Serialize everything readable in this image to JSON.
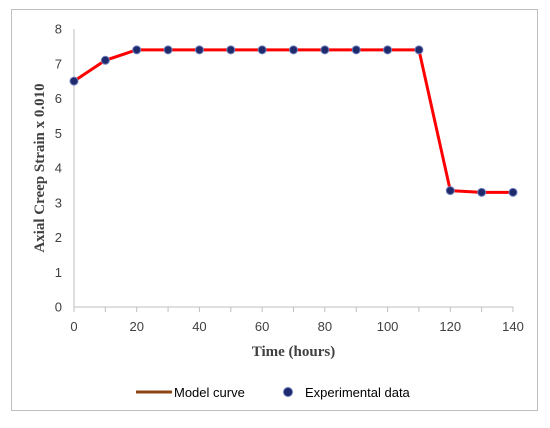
{
  "chart_data": {
    "type": "line",
    "xlabel": "Time (hours)",
    "ylabel": "Axial Creep Strain x 0.010",
    "xlim": [
      0,
      140
    ],
    "ylim": [
      0,
      8
    ],
    "xticks": [
      0,
      20,
      40,
      60,
      80,
      100,
      120,
      140
    ],
    "yticks": [
      0,
      1,
      2,
      3,
      4,
      5,
      6,
      7,
      8
    ],
    "grid": false,
    "legend_position": "bottom",
    "series": [
      {
        "name": "Model curve",
        "kind": "line",
        "color": "#ff0000",
        "legend_color": "#8b4513",
        "x": [
          0,
          10,
          20,
          30,
          40,
          50,
          60,
          70,
          80,
          90,
          100,
          110,
          120,
          130,
          140
        ],
        "y": [
          6.5,
          7.1,
          7.4,
          7.4,
          7.4,
          7.4,
          7.4,
          7.4,
          7.4,
          7.4,
          7.4,
          7.4,
          3.35,
          3.3,
          3.3
        ]
      },
      {
        "name": "Experimental data",
        "kind": "scatter",
        "color": "#1f2a6b",
        "x": [
          0,
          10,
          20,
          30,
          40,
          50,
          60,
          70,
          80,
          90,
          100,
          110,
          120,
          130,
          140
        ],
        "y": [
          6.5,
          7.1,
          7.4,
          7.4,
          7.4,
          7.4,
          7.4,
          7.4,
          7.4,
          7.4,
          7.4,
          7.4,
          3.35,
          3.3,
          3.3
        ]
      }
    ]
  }
}
